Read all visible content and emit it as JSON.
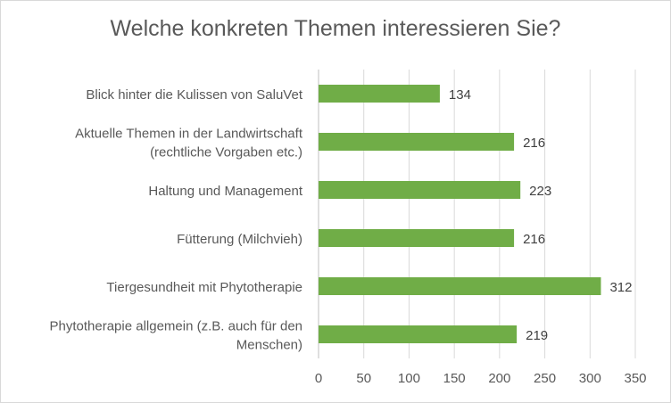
{
  "chart_data": {
    "type": "bar",
    "orientation": "horizontal",
    "title": "Welche konkreten Themen interessieren Sie?",
    "categories": [
      [
        "Blick hinter die Kulissen von SaluVet"
      ],
      [
        "Aktuelle Themen in der Landwirtschaft",
        "(rechtliche Vorgaben etc.)"
      ],
      [
        "Haltung und Management"
      ],
      [
        "Fütterung (Milchvieh)"
      ],
      [
        "Tiergesundheit mit Phytotherapie"
      ],
      [
        "Phytotherapie allgemein (z.B. auch für den",
        "Menschen)"
      ]
    ],
    "values": [
      134,
      216,
      223,
      216,
      312,
      219
    ],
    "xlim": [
      0,
      350
    ],
    "xticks": [
      0,
      50,
      100,
      150,
      200,
      250,
      300,
      350
    ],
    "grid": "vertical",
    "bar_color": "#70ad47"
  }
}
